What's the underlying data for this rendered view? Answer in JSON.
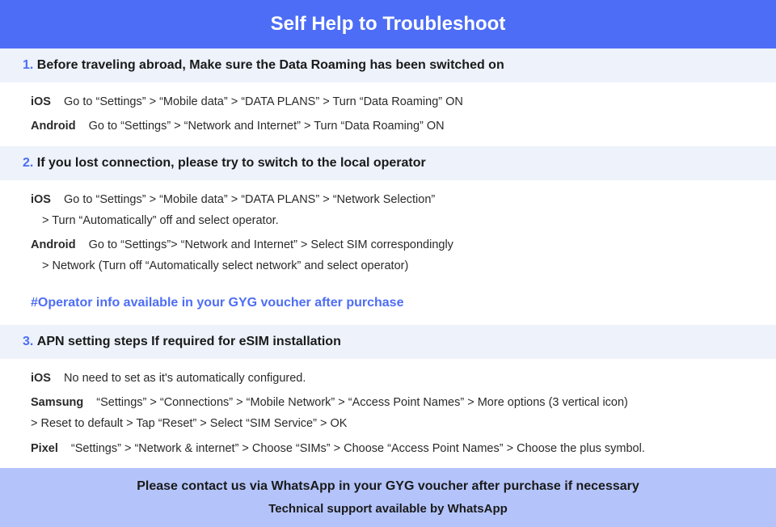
{
  "title": "Self Help to Troubleshoot",
  "colors": {
    "header_bg": "#4d6df6",
    "section_bg": "#edf2fb",
    "footer_bg": "#b4c4fb",
    "accent": "#4d6df6",
    "text": "#1a1a1a"
  },
  "section1": {
    "num": "1.",
    "bold": "Before traveling abroad,",
    "rest": "Make sure the Data Roaming has been switched on",
    "ios_label": "iOS",
    "ios_text": "Go to “Settings” > “Mobile data” > “DATA PLANS” > Turn “Data Roaming” ON",
    "android_label": "Android",
    "android_text": "Go to “Settings” > “Network and Internet” > Turn “Data Roaming” ON"
  },
  "section2": {
    "num": "2.",
    "title": "If you lost connection, please try to switch to the local operator",
    "ios_label": "iOS",
    "ios_text": "Go to “Settings” > “Mobile data” > “DATA PLANS” > “Network Selection”",
    "ios_cont": "> Turn “Automatically” off and select operator.",
    "android_label": "Android",
    "android_text": "Go to “Settings”>  “Network and Internet” > Select SIM correspondingly",
    "android_cont": "> Network (Turn off “Automatically select network” and select operator)",
    "note": "#Operator info available in your GYG voucher after purchase"
  },
  "section3": {
    "num": "3.",
    "title": "APN setting steps If required for eSIM installation",
    "ios_label": "iOS",
    "ios_text": "No need to set as it's automatically configured.",
    "samsung_label": "Samsung",
    "samsung_text": "“Settings” > “Connections” > “Mobile Network” > “Access Point Names” > More options (3 vertical icon)",
    "samsung_cont": "> Reset to default > Tap “Reset” > Select “SIM Service” > OK",
    "pixel_label": "Pixel",
    "pixel_text": "“Settings” > “Network & internet” > Choose “SIMs” > Choose “Access Point Names” > Choose the plus symbol."
  },
  "footer": {
    "line1": "Please contact us via WhatsApp  in your GYG voucher after purchase if necessary",
    "line2": "Technical support available by WhatsApp"
  }
}
